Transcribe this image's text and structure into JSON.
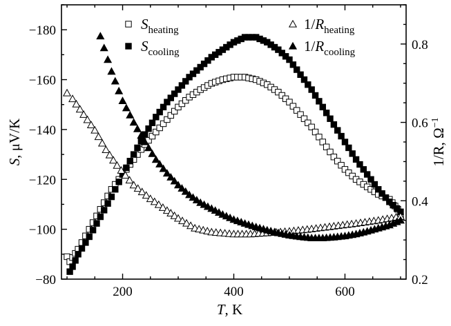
{
  "chart_data": {
    "type": "scatter",
    "x_axis": {
      "label_var": "T",
      "label_unit": ", K",
      "range": [
        90,
        710
      ],
      "ticks": [
        200,
        400,
        600
      ],
      "tick_labels": [
        "200",
        "400",
        "600"
      ]
    },
    "y_left_axis": {
      "label_var": "S",
      "label_unit": ", μV/K",
      "range": [
        -80,
        -190
      ],
      "ticks": [
        -80,
        -100,
        -120,
        -140,
        -160,
        -180
      ],
      "tick_labels": [
        "−80",
        "−100",
        "−120",
        "−140",
        "−160",
        "−180"
      ]
    },
    "y_right_axis": {
      "label": "1/R, Ω",
      "label_sup": "−1",
      "range": [
        0.2,
        0.9
      ],
      "ticks": [
        0.2,
        0.4,
        0.6,
        0.8
      ],
      "tick_labels": [
        "0.2",
        "0.4",
        "0.6",
        "0.8"
      ]
    },
    "legend": {
      "left": [
        {
          "var": "S",
          "sub": "heating",
          "marker": "open-square"
        },
        {
          "var": "S",
          "sub": "cooling",
          "marker": "filled-square"
        }
      ],
      "right": [
        {
          "var": "1/R",
          "sub": "heating",
          "marker": "open-triangle"
        },
        {
          "var": "1/R",
          "sub": "cooling",
          "marker": "filled-triangle"
        }
      ]
    },
    "series": [
      {
        "name": "S heating",
        "axis": "left",
        "marker": "open-square",
        "anchors": [
          [
            100,
            -89
          ],
          [
            105,
            -87
          ],
          [
            120,
            -92
          ],
          [
            140,
            -100
          ],
          [
            160,
            -108
          ],
          [
            180,
            -116
          ],
          [
            200,
            -122
          ],
          [
            220,
            -128
          ],
          [
            240,
            -134
          ],
          [
            260,
            -139
          ],
          [
            280,
            -144
          ],
          [
            300,
            -149
          ],
          [
            320,
            -153
          ],
          [
            340,
            -156
          ],
          [
            360,
            -158.5
          ],
          [
            380,
            -160
          ],
          [
            400,
            -161
          ],
          [
            420,
            -161
          ],
          [
            440,
            -160
          ],
          [
            460,
            -158
          ],
          [
            480,
            -155
          ],
          [
            500,
            -151
          ],
          [
            520,
            -146
          ],
          [
            540,
            -141
          ],
          [
            560,
            -135
          ],
          [
            580,
            -129
          ],
          [
            600,
            -124
          ],
          [
            620,
            -120
          ],
          [
            640,
            -117
          ],
          [
            660,
            -114
          ],
          [
            680,
            -112
          ],
          [
            695,
            -108
          ],
          [
            700,
            -105
          ]
        ]
      },
      {
        "name": "S cooling",
        "axis": "left",
        "marker": "filled-square",
        "anchors": [
          [
            105,
            -83
          ],
          [
            110,
            -85
          ],
          [
            120,
            -90
          ],
          [
            140,
            -97
          ],
          [
            160,
            -105
          ],
          [
            180,
            -113
          ],
          [
            200,
            -122
          ],
          [
            220,
            -130
          ],
          [
            240,
            -138
          ],
          [
            260,
            -145
          ],
          [
            280,
            -151
          ],
          [
            300,
            -156
          ],
          [
            320,
            -161
          ],
          [
            340,
            -165
          ],
          [
            360,
            -169
          ],
          [
            380,
            -172
          ],
          [
            400,
            -175
          ],
          [
            420,
            -177
          ],
          [
            440,
            -177
          ],
          [
            460,
            -175
          ],
          [
            480,
            -172
          ],
          [
            500,
            -168
          ],
          [
            520,
            -162
          ],
          [
            540,
            -156
          ],
          [
            560,
            -149
          ],
          [
            580,
            -142
          ],
          [
            600,
            -135
          ],
          [
            620,
            -128
          ],
          [
            640,
            -122
          ],
          [
            660,
            -116
          ],
          [
            680,
            -111
          ],
          [
            700,
            -107
          ]
        ]
      },
      {
        "name": "1/R heating",
        "axis": "right",
        "marker": "open-triangle",
        "anchors": [
          [
            100,
            0.675
          ],
          [
            110,
            0.66
          ],
          [
            130,
            0.62
          ],
          [
            150,
            0.58
          ],
          [
            170,
            0.53
          ],
          [
            190,
            0.49
          ],
          [
            220,
            0.44
          ],
          [
            250,
            0.405
          ],
          [
            280,
            0.375
          ],
          [
            300,
            0.355
          ],
          [
            330,
            0.33
          ],
          [
            360,
            0.32
          ],
          [
            400,
            0.315
          ],
          [
            430,
            0.315
          ],
          [
            460,
            0.318
          ],
          [
            500,
            0.322
          ],
          [
            540,
            0.328
          ],
          [
            580,
            0.335
          ],
          [
            620,
            0.342
          ],
          [
            660,
            0.35
          ],
          [
            700,
            0.36
          ]
        ]
      },
      {
        "name": "1/R cooling",
        "axis": "right",
        "marker": "filled-triangle",
        "anchors": [
          [
            160,
            0.82
          ],
          [
            180,
            0.73
          ],
          [
            200,
            0.655
          ],
          [
            220,
            0.6
          ],
          [
            240,
            0.55
          ],
          [
            260,
            0.505
          ],
          [
            280,
            0.47
          ],
          [
            300,
            0.44
          ],
          [
            320,
            0.415
          ],
          [
            340,
            0.395
          ],
          [
            360,
            0.38
          ],
          [
            380,
            0.365
          ],
          [
            400,
            0.352
          ],
          [
            420,
            0.342
          ],
          [
            440,
            0.333
          ],
          [
            460,
            0.325
          ],
          [
            480,
            0.318
          ],
          [
            500,
            0.312
          ],
          [
            520,
            0.308
          ],
          [
            540,
            0.305
          ],
          [
            560,
            0.305
          ],
          [
            580,
            0.307
          ],
          [
            600,
            0.31
          ],
          [
            620,
            0.315
          ],
          [
            640,
            0.322
          ],
          [
            660,
            0.33
          ],
          [
            680,
            0.338
          ],
          [
            700,
            0.35
          ]
        ]
      }
    ]
  }
}
